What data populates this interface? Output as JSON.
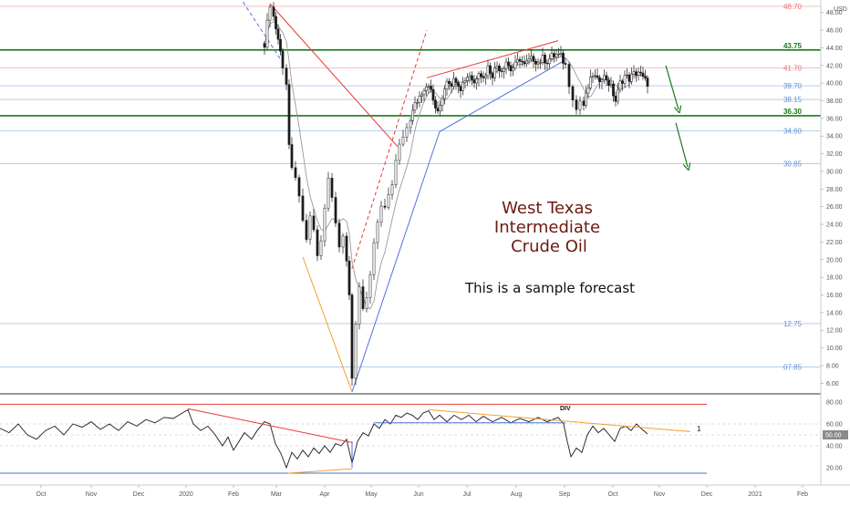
{
  "chart_data": {
    "type": "candlestick",
    "title": "West Texas Intermediate Crude Oil",
    "title_lines": [
      "West Texas",
      "Intermediate",
      "Crude Oil"
    ],
    "subtitle": "This is a sample forecast",
    "currency": "USD",
    "x_axis": {
      "labels": [
        "Oct",
        "Nov",
        "Dec",
        "2020",
        "Feb",
        "Mar",
        "Apr",
        "May",
        "Jun",
        "Jul",
        "Aug",
        "Sep",
        "Oct",
        "Nov",
        "Dec",
        "2021",
        "Feb"
      ]
    },
    "price_axis": {
      "range": [
        5,
        48
      ],
      "ticks": [
        "6.00",
        "8.00",
        "10.00",
        "12.00",
        "14.00",
        "16.00",
        "18.00",
        "20.00",
        "22.00",
        "24.00",
        "26.00",
        "28.00",
        "30.00",
        "32.00",
        "34.00",
        "36.00",
        "38.00",
        "40.00",
        "42.00",
        "44.00",
        "46.00",
        "48.00"
      ]
    },
    "levels": [
      {
        "label": "48.70",
        "value": 48.7,
        "color": "#e57373",
        "weight": "thin"
      },
      {
        "label": "43.75",
        "value": 43.75,
        "color": "#1b7a1b",
        "weight": "bold"
      },
      {
        "label": "41.70",
        "value": 41.7,
        "color": "#e57373",
        "weight": "thin"
      },
      {
        "label": "39.70",
        "value": 39.7,
        "color": "#5b8fd8",
        "weight": "thin"
      },
      {
        "label": "38.15",
        "value": 38.15,
        "color": "#5b8fd8",
        "weight": "thin"
      },
      {
        "label": "36.30",
        "value": 36.3,
        "color": "#1b7a1b",
        "weight": "bold"
      },
      {
        "label": "34.60",
        "value": 34.6,
        "color": "#5b8fd8",
        "weight": "thin"
      },
      {
        "label": "30.85",
        "value": 30.85,
        "color": "#5b8fd8",
        "weight": "thin"
      },
      {
        "label": "12.75",
        "value": 12.75,
        "color": "#5b8fd8",
        "weight": "thin"
      },
      {
        "label": "07.85",
        "value": 7.85,
        "color": "#5b8fd8",
        "weight": "thin"
      }
    ],
    "price_path": [
      {
        "x": 290,
        "y": 44.5
      },
      {
        "x": 296,
        "y": 49
      },
      {
        "x": 300,
        "y": 47.5
      },
      {
        "x": 305,
        "y": 45
      },
      {
        "x": 310,
        "y": 42
      },
      {
        "x": 314,
        "y": 40
      },
      {
        "x": 317,
        "y": 33
      },
      {
        "x": 320,
        "y": 30
      },
      {
        "x": 324,
        "y": 29
      },
      {
        "x": 328,
        "y": 27.5
      },
      {
        "x": 332,
        "y": 24
      },
      {
        "x": 336,
        "y": 22
      },
      {
        "x": 340,
        "y": 25
      },
      {
        "x": 344,
        "y": 23
      },
      {
        "x": 348,
        "y": 20.5
      },
      {
        "x": 352,
        "y": 22
      },
      {
        "x": 356,
        "y": 26
      },
      {
        "x": 360,
        "y": 29
      },
      {
        "x": 364,
        "y": 27
      },
      {
        "x": 368,
        "y": 24
      },
      {
        "x": 372,
        "y": 21.5
      },
      {
        "x": 376,
        "y": 23
      },
      {
        "x": 380,
        "y": 20
      },
      {
        "x": 383,
        "y": 16
      },
      {
        "x": 386,
        "y": 7
      },
      {
        "x": 390,
        "y": 13
      },
      {
        "x": 394,
        "y": 17
      },
      {
        "x": 398,
        "y": 14
      },
      {
        "x": 402,
        "y": 15.5
      },
      {
        "x": 406,
        "y": 18.5
      },
      {
        "x": 410,
        "y": 22
      },
      {
        "x": 414,
        "y": 24.5
      },
      {
        "x": 418,
        "y": 26
      },
      {
        "x": 422,
        "y": 25.5
      },
      {
        "x": 426,
        "y": 27
      },
      {
        "x": 430,
        "y": 28.5
      },
      {
        "x": 434,
        "y": 31
      },
      {
        "x": 438,
        "y": 33
      },
      {
        "x": 442,
        "y": 33.5
      },
      {
        "x": 446,
        "y": 35
      },
      {
        "x": 450,
        "y": 36
      },
      {
        "x": 455,
        "y": 37.5
      },
      {
        "x": 460,
        "y": 38.5
      },
      {
        "x": 465,
        "y": 39.5
      },
      {
        "x": 470,
        "y": 40
      },
      {
        "x": 475,
        "y": 38
      },
      {
        "x": 480,
        "y": 36.5
      },
      {
        "x": 485,
        "y": 38.5
      },
      {
        "x": 490,
        "y": 40.5
      },
      {
        "x": 495,
        "y": 40
      },
      {
        "x": 500,
        "y": 40.5
      },
      {
        "x": 505,
        "y": 39.5
      },
      {
        "x": 510,
        "y": 40.5
      },
      {
        "x": 515,
        "y": 41
      },
      {
        "x": 520,
        "y": 40
      },
      {
        "x": 525,
        "y": 41.5
      },
      {
        "x": 530,
        "y": 40.5
      },
      {
        "x": 535,
        "y": 41.8
      },
      {
        "x": 540,
        "y": 41
      },
      {
        "x": 545,
        "y": 42
      },
      {
        "x": 550,
        "y": 41.5
      },
      {
        "x": 555,
        "y": 42.5
      },
      {
        "x": 560,
        "y": 41.5
      },
      {
        "x": 565,
        "y": 42
      },
      {
        "x": 570,
        "y": 42.8
      },
      {
        "x": 575,
        "y": 42
      },
      {
        "x": 580,
        "y": 42.5
      },
      {
        "x": 585,
        "y": 42.8
      },
      {
        "x": 590,
        "y": 42.3
      },
      {
        "x": 595,
        "y": 42.8
      },
      {
        "x": 600,
        "y": 42.5
      },
      {
        "x": 605,
        "y": 43
      },
      {
        "x": 610,
        "y": 43.2
      },
      {
        "x": 615,
        "y": 43
      },
      {
        "x": 620,
        "y": 42
      },
      {
        "x": 624,
        "y": 40
      },
      {
        "x": 628,
        "y": 38.5
      },
      {
        "x": 632,
        "y": 37
      },
      {
        "x": 636,
        "y": 38
      },
      {
        "x": 640,
        "y": 37.5
      },
      {
        "x": 645,
        "y": 39.5
      },
      {
        "x": 650,
        "y": 41
      },
      {
        "x": 655,
        "y": 40.2
      },
      {
        "x": 660,
        "y": 40.8
      },
      {
        "x": 665,
        "y": 40.5
      },
      {
        "x": 670,
        "y": 39.5
      },
      {
        "x": 675,
        "y": 38
      },
      {
        "x": 680,
        "y": 40
      },
      {
        "x": 685,
        "y": 40.8
      },
      {
        "x": 690,
        "y": 40.5
      },
      {
        "x": 695,
        "y": 41
      },
      {
        "x": 700,
        "y": 41.3
      },
      {
        "x": 705,
        "y": 40.5
      },
      {
        "x": 710,
        "y": 40
      }
    ],
    "annotation_lines": [
      {
        "color": "#e53935",
        "dash": false,
        "from": {
          "x": 296,
          "y": 49
        },
        "to": {
          "x": 436,
          "y": 32.8
        }
      },
      {
        "color": "#e53935",
        "dash": true,
        "from": {
          "x": 386,
          "y": 19
        },
        "to": {
          "x": 468,
          "y": 46
        }
      },
      {
        "color": "#e53935",
        "dash": false,
        "from": {
          "x": 468,
          "y": 40.6
        },
        "to": {
          "x": 612,
          "y": 44.8
        }
      },
      {
        "color": "#4a73d9",
        "dash": false,
        "from": {
          "x": 386,
          "y": 5
        },
        "to": {
          "x": 482,
          "y": 34.5
        }
      },
      {
        "color": "#4a73d9",
        "dash": false,
        "from": {
          "x": 482,
          "y": 34.5
        },
        "to": {
          "x": 618,
          "y": 42.5
        }
      },
      {
        "color": "#4a73d9",
        "dash": true,
        "from": {
          "x": 255,
          "y": 51
        },
        "to": {
          "x": 312,
          "y": 42
        }
      },
      {
        "color": "#f0a030",
        "dash": false,
        "from": {
          "x": 332,
          "y": 20.3
        },
        "to": {
          "x": 386,
          "y": 5
        }
      }
    ],
    "forecast_arrows": [
      {
        "color": "#1b7a1b",
        "from": {
          "x": 730,
          "y": 42
        },
        "to": {
          "x": 744,
          "y": 37
        }
      },
      {
        "color": "#1b7a1b",
        "from": {
          "x": 741,
          "y": 35.5
        },
        "to": {
          "x": 754,
          "y": 30.5
        }
      }
    ],
    "indicator": {
      "type": "line",
      "range": [
        10,
        85
      ],
      "ticks": [
        "20.00",
        "40.00",
        "50.00",
        "60.00",
        "80.00"
      ],
      "current": "50.00",
      "upper_line": 78,
      "lower_line": 15,
      "label_div": "DIV",
      "label_count": "1",
      "path": [
        {
          "x": 0,
          "y": 56
        },
        {
          "x": 10,
          "y": 52
        },
        {
          "x": 20,
          "y": 60
        },
        {
          "x": 30,
          "y": 50
        },
        {
          "x": 40,
          "y": 46
        },
        {
          "x": 50,
          "y": 54
        },
        {
          "x": 60,
          "y": 58
        },
        {
          "x": 70,
          "y": 50
        },
        {
          "x": 80,
          "y": 60
        },
        {
          "x": 90,
          "y": 57
        },
        {
          "x": 100,
          "y": 62
        },
        {
          "x": 110,
          "y": 55
        },
        {
          "x": 120,
          "y": 60
        },
        {
          "x": 130,
          "y": 54
        },
        {
          "x": 140,
          "y": 62
        },
        {
          "x": 150,
          "y": 58
        },
        {
          "x": 160,
          "y": 64
        },
        {
          "x": 170,
          "y": 61
        },
        {
          "x": 180,
          "y": 66
        },
        {
          "x": 190,
          "y": 65
        },
        {
          "x": 200,
          "y": 70
        },
        {
          "x": 206,
          "y": 73
        },
        {
          "x": 212,
          "y": 60
        },
        {
          "x": 220,
          "y": 54
        },
        {
          "x": 228,
          "y": 58
        },
        {
          "x": 236,
          "y": 50
        },
        {
          "x": 244,
          "y": 40
        },
        {
          "x": 250,
          "y": 48
        },
        {
          "x": 256,
          "y": 36
        },
        {
          "x": 262,
          "y": 44
        },
        {
          "x": 268,
          "y": 52
        },
        {
          "x": 276,
          "y": 46
        },
        {
          "x": 282,
          "y": 54
        },
        {
          "x": 290,
          "y": 62
        },
        {
          "x": 296,
          "y": 60
        },
        {
          "x": 302,
          "y": 42
        },
        {
          "x": 308,
          "y": 33
        },
        {
          "x": 314,
          "y": 20
        },
        {
          "x": 320,
          "y": 34
        },
        {
          "x": 326,
          "y": 28
        },
        {
          "x": 332,
          "y": 36
        },
        {
          "x": 338,
          "y": 30
        },
        {
          "x": 344,
          "y": 38
        },
        {
          "x": 350,
          "y": 33
        },
        {
          "x": 356,
          "y": 40
        },
        {
          "x": 362,
          "y": 34
        },
        {
          "x": 368,
          "y": 42
        },
        {
          "x": 374,
          "y": 40
        },
        {
          "x": 380,
          "y": 46
        },
        {
          "x": 386,
          "y": 24
        },
        {
          "x": 392,
          "y": 44
        },
        {
          "x": 398,
          "y": 52
        },
        {
          "x": 404,
          "y": 49
        },
        {
          "x": 410,
          "y": 60
        },
        {
          "x": 416,
          "y": 56
        },
        {
          "x": 422,
          "y": 64
        },
        {
          "x": 428,
          "y": 60
        },
        {
          "x": 434,
          "y": 68
        },
        {
          "x": 440,
          "y": 66
        },
        {
          "x": 446,
          "y": 70
        },
        {
          "x": 452,
          "y": 68
        },
        {
          "x": 458,
          "y": 64
        },
        {
          "x": 464,
          "y": 70
        },
        {
          "x": 470,
          "y": 72
        },
        {
          "x": 476,
          "y": 64
        },
        {
          "x": 482,
          "y": 68
        },
        {
          "x": 490,
          "y": 62
        },
        {
          "x": 498,
          "y": 68
        },
        {
          "x": 506,
          "y": 64
        },
        {
          "x": 514,
          "y": 68
        },
        {
          "x": 522,
          "y": 62
        },
        {
          "x": 530,
          "y": 67
        },
        {
          "x": 540,
          "y": 62
        },
        {
          "x": 550,
          "y": 66
        },
        {
          "x": 560,
          "y": 61
        },
        {
          "x": 570,
          "y": 65
        },
        {
          "x": 580,
          "y": 62
        },
        {
          "x": 590,
          "y": 66
        },
        {
          "x": 600,
          "y": 62
        },
        {
          "x": 612,
          "y": 66
        },
        {
          "x": 618,
          "y": 60
        },
        {
          "x": 622,
          "y": 44
        },
        {
          "x": 626,
          "y": 30
        },
        {
          "x": 632,
          "y": 38
        },
        {
          "x": 638,
          "y": 34
        },
        {
          "x": 644,
          "y": 50
        },
        {
          "x": 650,
          "y": 58
        },
        {
          "x": 656,
          "y": 52
        },
        {
          "x": 662,
          "y": 56
        },
        {
          "x": 668,
          "y": 50
        },
        {
          "x": 674,
          "y": 44
        },
        {
          "x": 680,
          "y": 56
        },
        {
          "x": 686,
          "y": 58
        },
        {
          "x": 692,
          "y": 54
        },
        {
          "x": 698,
          "y": 60
        },
        {
          "x": 704,
          "y": 55
        },
        {
          "x": 710,
          "y": 51
        }
      ],
      "annotation_lines": [
        {
          "color": "#e53935",
          "from": {
            "x": 206,
            "y": 74
          },
          "to": {
            "x": 386,
            "y": 43
          }
        },
        {
          "color": "#f0a030",
          "from": {
            "x": 316,
            "y": 15
          },
          "to": {
            "x": 386,
            "y": 19
          }
        },
        {
          "color": "#4a73d9",
          "from": {
            "x": 386,
            "y": 44
          },
          "to": {
            "x": 386,
            "y": 20
          }
        },
        {
          "color": "#4a73d9",
          "from": {
            "x": 410,
            "y": 61
          },
          "to": {
            "x": 620,
            "y": 61
          }
        },
        {
          "color": "#f0a030",
          "from": {
            "x": 470,
            "y": 73
          },
          "to": {
            "x": 757,
            "y": 53
          }
        }
      ]
    }
  }
}
